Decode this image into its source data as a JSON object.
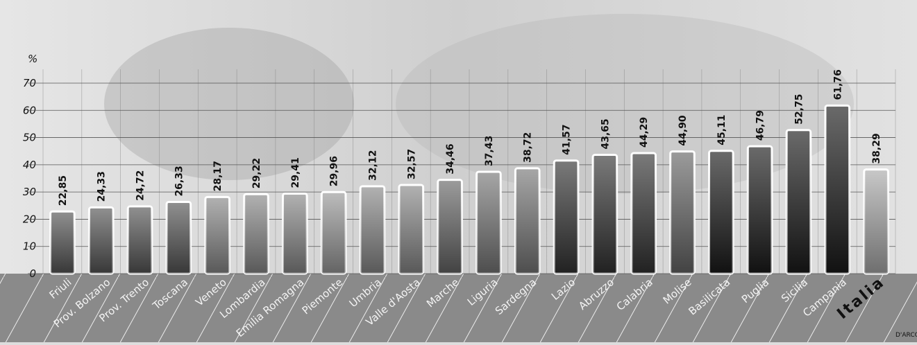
{
  "chart_data": {
    "type": "bar",
    "y_label": "%",
    "categories": [
      "Friuli",
      "Prov. Bolzano",
      "Prov. Trento",
      "Toscana",
      "Veneto",
      "Lombardia",
      "Emilia Romagna",
      "Piemonte",
      "Umbria",
      "Valle d'Aosta",
      "Marche",
      "Liguria",
      "Sardegna",
      "Lazio",
      "Abruzzo",
      "Calabria",
      "Molise",
      "Basilicata",
      "Puglia",
      "Sicilia",
      "Campania",
      "Italia"
    ],
    "values": [
      22.85,
      24.33,
      24.72,
      26.33,
      28.17,
      29.22,
      29.41,
      29.96,
      32.12,
      32.57,
      34.46,
      37.43,
      38.72,
      41.57,
      43.65,
      44.29,
      44.9,
      45.11,
      46.79,
      52.75,
      61.76,
      38.29
    ],
    "value_labels": [
      "22,85",
      "24,33",
      "24,72",
      "26,33",
      "28,17",
      "29,22",
      "29,41",
      "29,96",
      "32,12",
      "32,57",
      "34,46",
      "37,43",
      "38,72",
      "41,57",
      "43,65",
      "44,29",
      "44,90",
      "45,11",
      "46,79",
      "52,75",
      "61,76",
      "38,29"
    ],
    "colors": [
      "#555",
      "#555",
      "#555",
      "#555",
      "#888",
      "#888",
      "#888",
      "#999",
      "#888",
      "#888",
      "#666",
      "#777",
      "#777",
      "#333",
      "#333",
      "#333",
      "#666",
      "#1a1a1a",
      "#1a1a1a",
      "#1a1a1a",
      "#1a1a1a",
      "#aaa"
    ],
    "ylim": [
      0,
      70
    ],
    "yticks": [
      0,
      10,
      20,
      30,
      40,
      50,
      60,
      70
    ],
    "grid": true,
    "credit": "D'ARCO"
  }
}
